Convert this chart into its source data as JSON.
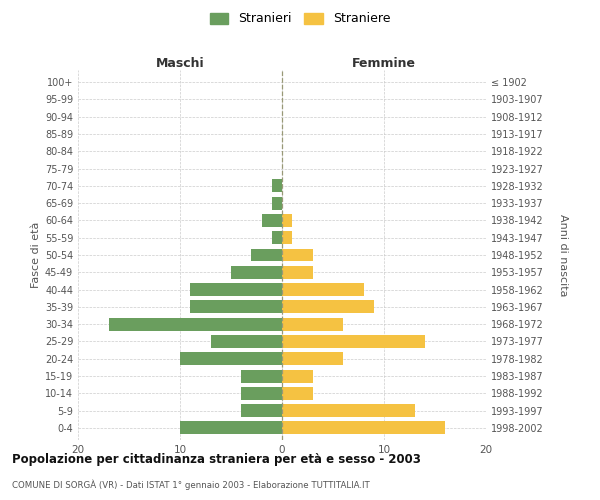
{
  "age_groups": [
    "0-4",
    "5-9",
    "10-14",
    "15-19",
    "20-24",
    "25-29",
    "30-34",
    "35-39",
    "40-44",
    "45-49",
    "50-54",
    "55-59",
    "60-64",
    "65-69",
    "70-74",
    "75-79",
    "80-84",
    "85-89",
    "90-94",
    "95-99",
    "100+"
  ],
  "birth_years": [
    "1998-2002",
    "1993-1997",
    "1988-1992",
    "1983-1987",
    "1978-1982",
    "1973-1977",
    "1968-1972",
    "1963-1967",
    "1958-1962",
    "1953-1957",
    "1948-1952",
    "1943-1947",
    "1938-1942",
    "1933-1937",
    "1928-1932",
    "1923-1927",
    "1918-1922",
    "1913-1917",
    "1908-1912",
    "1903-1907",
    "≤ 1902"
  ],
  "maschi": [
    10,
    4,
    4,
    4,
    10,
    7,
    17,
    9,
    9,
    5,
    3,
    1,
    2,
    1,
    1,
    0,
    0,
    0,
    0,
    0,
    0
  ],
  "femmine": [
    16,
    13,
    3,
    3,
    6,
    14,
    6,
    9,
    8,
    3,
    3,
    1,
    1,
    0,
    0,
    0,
    0,
    0,
    0,
    0,
    0
  ],
  "color_maschi": "#6a9e5e",
  "color_femmine": "#f5c242",
  "title_main": "Popolazione per cittadinanza straniera per età e sesso - 2003",
  "title_sub": "COMUNE DI SORGÀ (VR) - Dati ISTAT 1° gennaio 2003 - Elaborazione TUTTITALIA.IT",
  "ylabel_left": "Fasce di età",
  "ylabel_right": "Anni di nascita",
  "label_maschi": "Maschi",
  "label_femmine": "Femmine",
  "legend_maschi": "Stranieri",
  "legend_femmine": "Straniere",
  "xlim": [
    -20,
    20
  ],
  "xticks": [
    -20,
    -10,
    0,
    10,
    20
  ],
  "bg_color": "#ffffff",
  "grid_color": "#cccccc",
  "bar_height": 0.75
}
